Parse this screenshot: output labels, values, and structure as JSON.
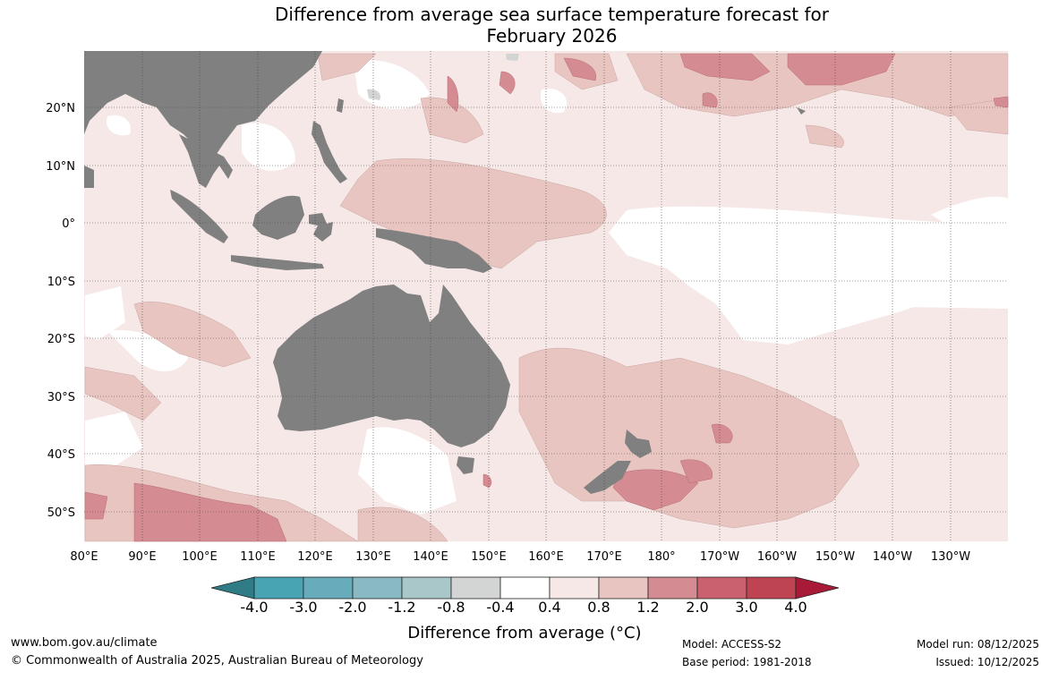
{
  "title": {
    "line1": "Difference from average sea surface temperature forecast for",
    "line2": "February 2026"
  },
  "map": {
    "lon_labels": [
      "80°E",
      "90°E",
      "100°E",
      "110°E",
      "120°E",
      "130°E",
      "140°E",
      "150°E",
      "160°E",
      "170°E",
      "180°",
      "170°W",
      "160°W",
      "150°W",
      "140°W",
      "130°W"
    ],
    "lat_labels": [
      "20°N",
      "10°N",
      "0°",
      "10°S",
      "20°S",
      "30°S",
      "40°S",
      "50°S"
    ],
    "land_color": "#808080",
    "ocean_color": "#ffffff"
  },
  "colorbar": {
    "title": "Difference from average (°C)",
    "labels": [
      "-4.0",
      "-3.0",
      "-2.0",
      "-1.2",
      "-0.8",
      "-0.4",
      "0.4",
      "0.8",
      "1.2",
      "2.0",
      "3.0",
      "4.0"
    ],
    "colors": [
      "#2f7c86",
      "#48a3b3",
      "#68acbb",
      "#89b9c2",
      "#a9c6c9",
      "#d3d5d4",
      "#ffffff",
      "#f5e8e7",
      "#e8c5c1",
      "#d48b92",
      "#c9626e",
      "#bf4452",
      "#a81a38"
    ]
  },
  "footer": {
    "website": "www.bom.gov.au/climate",
    "copyright": "© Commonwealth of Australia 2025, Australian Bureau of Meteorology",
    "model": "Model: ACCESS-S2",
    "base_period": "Base period: 1981-2018",
    "model_run": "Model run: 08/12/2025",
    "issued": "Issued: 10/12/2025"
  }
}
